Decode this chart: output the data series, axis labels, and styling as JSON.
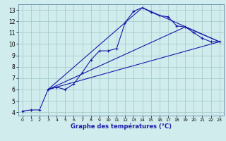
{
  "xlabel": "Graphe des températures (°C)",
  "background_color": "#d0ecec",
  "grid_color": "#a0c8c8",
  "line_color": "#1a1aaa",
  "xlim": [
    -0.5,
    23.5
  ],
  "ylim": [
    3.7,
    13.5
  ],
  "xticks": [
    0,
    1,
    2,
    3,
    4,
    5,
    6,
    7,
    8,
    9,
    10,
    11,
    12,
    13,
    14,
    15,
    16,
    17,
    18,
    19,
    20,
    21,
    22,
    23
  ],
  "yticks": [
    4,
    5,
    6,
    7,
    8,
    9,
    10,
    11,
    12,
    13
  ],
  "curve_main_x": [
    0,
    1,
    2,
    3,
    4,
    5,
    6,
    7,
    8,
    9,
    10,
    11,
    12,
    13,
    14,
    15,
    16,
    17,
    18,
    19,
    20,
    21,
    22,
    23
  ],
  "curve_main_y": [
    4.1,
    4.2,
    4.2,
    6.0,
    6.2,
    6.0,
    6.5,
    7.5,
    8.6,
    9.4,
    9.4,
    9.6,
    11.9,
    12.9,
    13.2,
    12.8,
    12.5,
    12.4,
    11.6,
    11.5,
    11.0,
    10.5,
    10.2,
    10.2
  ],
  "line1_x": [
    3,
    14,
    23
  ],
  "line1_y": [
    6.0,
    13.2,
    10.2
  ],
  "line2_x": [
    3,
    19,
    23
  ],
  "line2_y": [
    6.0,
    11.5,
    10.2
  ],
  "line3_x": [
    3,
    23
  ],
  "line3_y": [
    6.0,
    10.2
  ],
  "marker_pts_x": [
    0,
    1,
    2,
    3,
    4,
    5,
    6,
    7,
    8,
    9,
    10,
    11,
    12,
    13,
    14,
    15,
    16,
    17,
    18,
    19,
    20,
    21,
    22,
    23
  ],
  "marker_pts_y": [
    4.1,
    4.2,
    4.2,
    6.0,
    6.2,
    6.0,
    6.5,
    7.5,
    8.6,
    9.4,
    9.4,
    9.6,
    11.9,
    12.9,
    13.2,
    12.8,
    12.5,
    12.4,
    11.6,
    11.5,
    11.0,
    10.5,
    10.2,
    10.2
  ]
}
